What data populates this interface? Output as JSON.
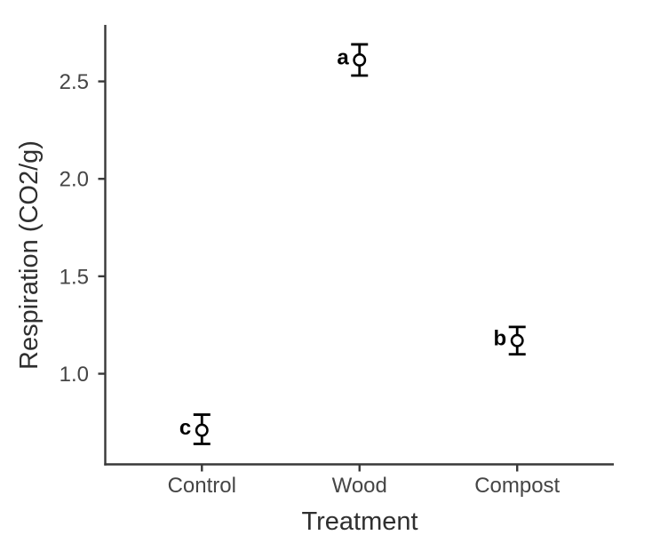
{
  "chart_data": {
    "type": "scatter",
    "title": "",
    "xlabel": "Treatment",
    "ylabel": "Respiration (CO2/g)",
    "categories": [
      "Control",
      "Wood",
      "Compost"
    ],
    "points": [
      {
        "category": "Control",
        "mean": 0.71,
        "ci_low": 0.64,
        "ci_high": 0.79,
        "letter": "c"
      },
      {
        "category": "Wood",
        "mean": 2.61,
        "ci_low": 2.53,
        "ci_high": 2.69,
        "letter": "a"
      },
      {
        "category": "Compost",
        "mean": 1.17,
        "ci_low": 1.1,
        "ci_high": 1.24,
        "letter": "b"
      }
    ],
    "y_ticks": [
      1.0,
      1.5,
      2.0,
      2.5
    ],
    "y_tick_labels": [
      "1.0",
      "1.5",
      "2.0",
      "2.5"
    ],
    "ylim": [
      0.535,
      2.79
    ],
    "grid": false,
    "legend": false,
    "marker": "open-circle",
    "colors": {
      "axis": "#383838",
      "tick_label": "#454545",
      "axis_title": "#2f2f2f",
      "point": "#000000",
      "letter": "#000000",
      "background": "#ffffff"
    }
  }
}
